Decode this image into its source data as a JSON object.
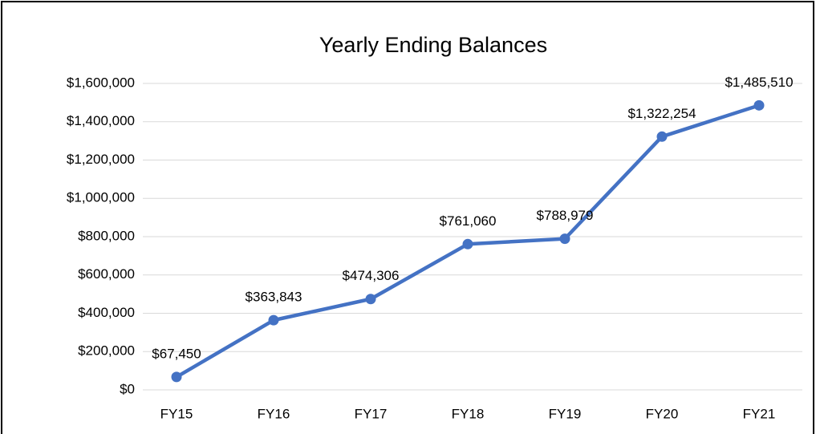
{
  "chart_data": {
    "type": "line",
    "title": "Yearly Ending Balances",
    "categories": [
      "FY15",
      "FY16",
      "FY17",
      "FY18",
      "FY19",
      "FY20",
      "FY21"
    ],
    "series": [
      {
        "name": "Ending Balance",
        "color": "#4472c4",
        "values": [
          67450,
          363843,
          474306,
          761060,
          788979,
          1322254,
          1485510
        ],
        "value_labels": [
          "$67,450",
          "$363,843",
          "$474,306",
          "$761,060",
          "$788,979",
          "$1,322,254",
          "$1,485,510"
        ]
      }
    ],
    "ylim": [
      0,
      1600000
    ],
    "yticks": [
      {
        "value": 0,
        "label": "$0"
      },
      {
        "value": 200000,
        "label": "$200,000"
      },
      {
        "value": 400000,
        "label": "$400,000"
      },
      {
        "value": 600000,
        "label": "$600,000"
      },
      {
        "value": 800000,
        "label": "$800,000"
      },
      {
        "value": 1000000,
        "label": "$1,000,000"
      },
      {
        "value": 1200000,
        "label": "$1,200,000"
      },
      {
        "value": 1400000,
        "label": "$1,400,000"
      },
      {
        "value": 1600000,
        "label": "$1,600,000"
      }
    ],
    "grid": true
  }
}
